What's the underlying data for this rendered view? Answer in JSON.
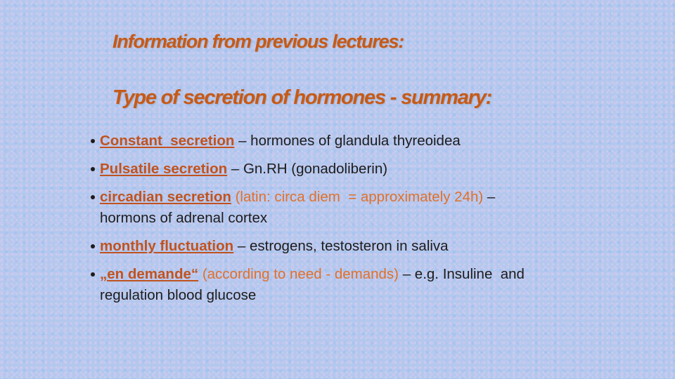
{
  "header": {
    "title": "Information from previous lectures:",
    "subtitle": "Type of secretion of hormones - summary:"
  },
  "bullets": [
    {
      "term": "Constant  secretion",
      "text": " – hormones of glandula thyreoidea"
    },
    {
      "term": "Pulsatile secretion",
      "text": " – Gn.RH (gonadoliberin)"
    },
    {
      "term": "circadian secretion",
      "note": " (latin: circa diem  = approximately 24h)",
      "text": " – hormons of adrenal cortex"
    },
    {
      "term": "monthly fluctuation",
      "text": " – estrogens, testosteron in saliva"
    },
    {
      "term": "„en demande“",
      "note": " (according to need - demands)",
      "text": " – e.g. Insuline  and regulation blood glucose"
    }
  ]
}
